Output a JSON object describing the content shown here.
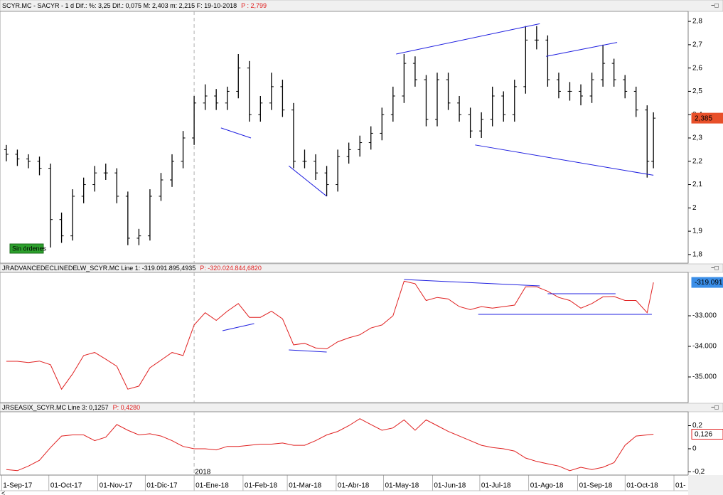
{
  "x_axis": {
    "xlim": [
      "2017-08-31",
      "2018-11-10"
    ],
    "xticks": [
      {
        "value": "2017-09-01",
        "label": "1-Sep-17"
      },
      {
        "value": "2017-10-01",
        "label": "01-Oct-17"
      },
      {
        "value": "2017-11-01",
        "label": "01-Nov-17"
      },
      {
        "value": "2017-12-01",
        "label": "01-Dic-17"
      },
      {
        "value": "2018-01-01",
        "label": "01-Ene-18"
      },
      {
        "value": "2018-02-01",
        "label": "01-Feb-18"
      },
      {
        "value": "2018-03-01",
        "label": "01-Mar-18"
      },
      {
        "value": "2018-04-01",
        "label": "01-Abr-18"
      },
      {
        "value": "2018-05-01",
        "label": "01-May-18"
      },
      {
        "value": "2018-06-01",
        "label": "01-Jun-18"
      },
      {
        "value": "2018-07-01",
        "label": "01-Jul-18"
      },
      {
        "value": "2018-08-01",
        "label": "01-Ago-18"
      },
      {
        "value": "2018-09-01",
        "label": "01-Sep-18"
      },
      {
        "value": "2018-10-01",
        "label": "01-Oct-18"
      },
      {
        "value": "2018-11-01",
        "label": "01-"
      }
    ],
    "year_marker": {
      "value": "2018-01-01",
      "label": "2018"
    },
    "dates": [
      "2017-09-04",
      "2017-09-11",
      "2017-09-18",
      "2017-09-25",
      "2017-10-02",
      "2017-10-09",
      "2017-10-16",
      "2017-10-23",
      "2017-10-30",
      "2017-11-06",
      "2017-11-13",
      "2017-11-20",
      "2017-11-27",
      "2017-12-04",
      "2017-12-11",
      "2017-12-18",
      "2017-12-25",
      "2018-01-01",
      "2018-01-08",
      "2018-01-15",
      "2018-01-22",
      "2018-01-29",
      "2018-02-05",
      "2018-02-12",
      "2018-02-19",
      "2018-02-26",
      "2018-03-05",
      "2018-03-12",
      "2018-03-19",
      "2018-03-26",
      "2018-04-02",
      "2018-04-09",
      "2018-04-16",
      "2018-04-23",
      "2018-04-30",
      "2018-05-07",
      "2018-05-14",
      "2018-05-21",
      "2018-05-28",
      "2018-06-04",
      "2018-06-11",
      "2018-06-18",
      "2018-06-25",
      "2018-07-02",
      "2018-07-09",
      "2018-07-16",
      "2018-07-23",
      "2018-07-30",
      "2018-08-06",
      "2018-08-13",
      "2018-08-20",
      "2018-08-27",
      "2018-09-03",
      "2018-09-10",
      "2018-09-17",
      "2018-09-24",
      "2018-10-01",
      "2018-10-08",
      "2018-10-15",
      "2018-10-19"
    ]
  },
  "chart_data": [
    {
      "type": "ohlc",
      "title": "SCYR.MC - SACYR -  1 d  Dif.: %: 3,25  Dif.: 0,075  M: 2,403  m: 2,215  F: 19-10-2018",
      "subtitle": "P : 2,799",
      "annotation": "Sin órdenes",
      "color": "#000000",
      "trend_color": "#2020e0",
      "ylim": [
        1.763,
        2.843
      ],
      "yticks": [
        {
          "value": 2.8,
          "label": "2,8"
        },
        {
          "value": 2.7,
          "label": "2,7"
        },
        {
          "value": 2.6,
          "label": "2,6"
        },
        {
          "value": 2.5,
          "label": "2,5"
        },
        {
          "value": 2.4,
          "label": "2,4"
        },
        {
          "value": 2.3,
          "label": "2,3"
        },
        {
          "value": 2.2,
          "label": "2,2"
        },
        {
          "value": 2.1,
          "label": "2,1"
        },
        2,
        {
          "value": 1.9,
          "label": "1,9"
        },
        {
          "value": 1.8,
          "label": "1,8"
        }
      ],
      "current": {
        "value": 2.385,
        "label": "2,385"
      },
      "open": [
        2.25,
        2.23,
        2.21,
        2.2,
        2.17,
        1.95,
        1.88,
        2.05,
        2.1,
        2.15,
        2.15,
        2.05,
        1.87,
        1.88,
        2.05,
        2.12,
        2.2,
        2.3,
        2.45,
        2.48,
        2.45,
        2.5,
        2.6,
        2.4,
        2.45,
        2.52,
        2.42,
        2.2,
        2.2,
        2.15,
        2.1,
        2.22,
        2.25,
        2.28,
        2.32,
        2.4,
        2.48,
        2.62,
        2.55,
        2.38,
        2.55,
        2.45,
        2.4,
        2.33,
        2.38,
        2.48,
        2.4,
        2.52,
        2.72,
        2.72,
        2.55,
        2.5,
        2.5,
        2.48,
        2.55,
        2.62,
        2.55,
        2.5,
        2.42,
        2.2
      ],
      "high": [
        2.27,
        2.25,
        2.23,
        2.22,
        2.19,
        1.98,
        2.08,
        2.13,
        2.18,
        2.19,
        2.17,
        2.07,
        1.91,
        2.08,
        2.15,
        2.23,
        2.33,
        2.48,
        2.53,
        2.51,
        2.52,
        2.66,
        2.63,
        2.48,
        2.58,
        2.55,
        2.45,
        2.25,
        2.23,
        2.18,
        2.25,
        2.28,
        2.31,
        2.35,
        2.43,
        2.52,
        2.66,
        2.65,
        2.57,
        2.58,
        2.58,
        2.48,
        2.43,
        2.41,
        2.52,
        2.5,
        2.55,
        2.78,
        2.78,
        2.74,
        2.58,
        2.54,
        2.53,
        2.58,
        2.7,
        2.64,
        2.57,
        2.52,
        2.44,
        2.41
      ],
      "low": [
        2.2,
        2.18,
        2.17,
        2.14,
        1.83,
        1.85,
        1.86,
        2.02,
        2.07,
        2.12,
        2.02,
        1.84,
        1.84,
        1.86,
        2.03,
        2.09,
        2.17,
        2.27,
        2.42,
        2.42,
        2.42,
        2.47,
        2.37,
        2.37,
        2.42,
        2.39,
        2.17,
        2.17,
        2.12,
        2.05,
        2.07,
        2.19,
        2.22,
        2.25,
        2.29,
        2.37,
        2.45,
        2.52,
        2.35,
        2.35,
        2.42,
        2.37,
        2.3,
        2.3,
        2.35,
        2.37,
        2.37,
        2.49,
        2.68,
        2.52,
        2.47,
        2.46,
        2.44,
        2.45,
        2.52,
        2.52,
        2.47,
        2.39,
        2.13,
        2.17
      ],
      "close": [
        2.23,
        2.21,
        2.2,
        2.17,
        1.95,
        1.88,
        2.05,
        2.1,
        2.15,
        2.15,
        2.05,
        1.87,
        1.88,
        2.05,
        2.12,
        2.2,
        2.3,
        2.45,
        2.48,
        2.45,
        2.5,
        2.6,
        2.4,
        2.45,
        2.52,
        2.42,
        2.2,
        2.2,
        2.15,
        2.1,
        2.22,
        2.25,
        2.28,
        2.32,
        2.4,
        2.48,
        2.62,
        2.55,
        2.38,
        2.55,
        2.45,
        2.4,
        2.33,
        2.38,
        2.48,
        2.4,
        2.52,
        2.72,
        2.72,
        2.55,
        2.5,
        2.5,
        2.48,
        2.55,
        2.62,
        2.55,
        2.5,
        2.42,
        2.2,
        2.385
      ],
      "trendlines": [
        {
          "x": [
            "2018-01-18",
            "2018-02-06"
          ],
          "y": [
            2.343,
            2.3
          ]
        },
        {
          "x": [
            "2018-03-02",
            "2018-03-26"
          ],
          "y": [
            2.18,
            2.05
          ]
        },
        {
          "x": [
            "2018-05-09",
            "2018-08-08"
          ],
          "y": [
            2.66,
            2.79
          ]
        },
        {
          "x": [
            "2018-08-12",
            "2018-09-26"
          ],
          "y": [
            2.65,
            2.71
          ]
        },
        {
          "x": [
            "2018-06-28",
            "2018-10-19"
          ],
          "y": [
            2.27,
            2.14
          ]
        }
      ]
    },
    {
      "type": "line",
      "title": "JRADVANCEDECLINEDELW_SCYR.MC  Line 1: -319.091.895,4935",
      "subtitle": "P: -320.024.844,6820",
      "color": "#e02020",
      "trend_color": "#2020e0",
      "ylim": [
        -35837,
        -31581
      ],
      "yticks": [
        {
          "value": -33000,
          "label": "-33.000"
        },
        {
          "value": -34000,
          "label": "-34.000"
        },
        {
          "value": -35000,
          "label": "-35.000"
        }
      ],
      "current": {
        "value": -31909.1,
        "label": "-319.091"
      },
      "values": [
        -34488,
        -34488,
        -34530,
        -34480,
        -34600,
        -35400,
        -34900,
        -34300,
        -34200,
        -34420,
        -34650,
        -35400,
        -35300,
        -34700,
        -34450,
        -34200,
        -34300,
        -33300,
        -32900,
        -33150,
        -32850,
        -32600,
        -33050,
        -33050,
        -32850,
        -33100,
        -33950,
        -33900,
        -34050,
        -34080,
        -33850,
        -33720,
        -33620,
        -33400,
        -33300,
        -33000,
        -31870,
        -31950,
        -32500,
        -32400,
        -32450,
        -32700,
        -32800,
        -32700,
        -32750,
        -32700,
        -32650,
        -32050,
        -32050,
        -32200,
        -32400,
        -32500,
        -32750,
        -32600,
        -32380,
        -32370,
        -32500,
        -32500,
        -32900,
        -31909.1
      ],
      "trendlines": [
        {
          "x": [
            "2018-01-19",
            "2018-02-08"
          ],
          "y": [
            -33488,
            -33256
          ]
        },
        {
          "x": [
            "2018-03-02",
            "2018-03-26"
          ],
          "y": [
            -34116,
            -34186
          ]
        },
        {
          "x": [
            "2018-05-14",
            "2018-08-08"
          ],
          "y": [
            -31814,
            -32023
          ]
        },
        {
          "x": [
            "2018-08-13",
            "2018-09-25"
          ],
          "y": [
            -32279,
            -32279
          ]
        },
        {
          "x": [
            "2018-06-30",
            "2018-10-18"
          ],
          "y": [
            -32953,
            -32953
          ]
        }
      ]
    },
    {
      "type": "line",
      "title": "JRSEASIX_SCYR.MC  Line 3: 0,1257",
      "subtitle": "P: 0,4280",
      "color": "#e02020",
      "ylim": [
        -0.228,
        0.32
      ],
      "yticks": [
        {
          "value": 0.2,
          "label": "0,2"
        },
        0,
        {
          "value": -0.2,
          "label": "-0,2"
        }
      ],
      "current": {
        "value": 0.126,
        "label": "0,126"
      },
      "values": [
        -0.18,
        -0.19,
        -0.15,
        -0.1,
        0.01,
        0.11,
        0.12,
        0.12,
        0.07,
        0.1,
        0.21,
        0.16,
        0.12,
        0.13,
        0.11,
        0.07,
        0.02,
        0.0,
        0.0,
        -0.01,
        0.02,
        0.02,
        0.03,
        0.04,
        0.04,
        0.05,
        0.03,
        0.03,
        0.07,
        0.12,
        0.15,
        0.2,
        0.26,
        0.21,
        0.16,
        0.18,
        0.25,
        0.16,
        0.25,
        0.2,
        0.15,
        0.11,
        0.07,
        0.03,
        0.01,
        0.0,
        -0.02,
        -0.08,
        -0.11,
        -0.13,
        -0.15,
        -0.19,
        -0.16,
        -0.18,
        -0.16,
        -0.12,
        0.03,
        0.11,
        0.12,
        0.126
      ]
    }
  ]
}
